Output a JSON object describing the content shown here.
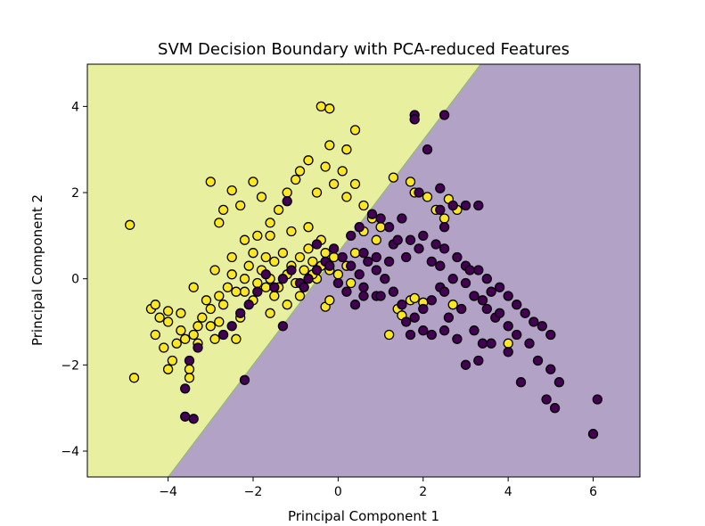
{
  "chart_data": {
    "type": "scatter",
    "title": "SVM Decision Boundary with PCA-reduced Features",
    "xlabel": "Principal Component 1",
    "ylabel": "Principal Component 2",
    "xlim": [
      -5.9,
      7.1
    ],
    "ylim": [
      -4.6,
      4.98
    ],
    "xticks": [
      -4,
      -2,
      0,
      2,
      4,
      6
    ],
    "yticks": [
      -4,
      -2,
      0,
      2,
      4
    ],
    "xtick_labels": [
      "−4",
      "−2",
      "0",
      "2",
      "4",
      "6"
    ],
    "ytick_labels": [
      "−4",
      "−2",
      "0",
      "2",
      "4"
    ],
    "grid": false,
    "legend": "none",
    "decision_boundary": {
      "line_points": [
        [
          -4.0,
          -4.6
        ],
        [
          3.35,
          4.98
        ]
      ],
      "region_colors": {
        "upper_left": "#e8f0a0",
        "lower_right": "#b2a3c6"
      }
    },
    "colors": {
      "class_1": "#fde725",
      "class_0": "#440154",
      "edge": "#000000"
    },
    "series": [
      {
        "class": 1,
        "points": [
          [
            -4.9,
            1.25
          ],
          [
            -4.8,
            -2.3
          ],
          [
            -4.4,
            -0.7
          ],
          [
            -4.3,
            -0.6
          ],
          [
            -4.2,
            -0.9
          ],
          [
            -4.1,
            -1.6
          ],
          [
            -4.0,
            -1.0
          ],
          [
            -4.3,
            -1.3
          ],
          [
            -4.0,
            -2.1
          ],
          [
            -3.9,
            -1.9
          ],
          [
            -3.8,
            -1.5
          ],
          [
            -3.7,
            -1.2
          ],
          [
            -3.5,
            -2.1
          ],
          [
            -3.5,
            -2.3
          ],
          [
            -3.4,
            -1.3
          ],
          [
            -3.3,
            -1.5
          ],
          [
            -3.2,
            -0.9
          ],
          [
            -3.1,
            -0.5
          ],
          [
            -3.0,
            -0.7
          ],
          [
            -3.0,
            -1.1
          ],
          [
            -2.9,
            -1.4
          ],
          [
            -2.8,
            -1.0
          ],
          [
            -2.7,
            -0.6
          ],
          [
            -2.6,
            -0.2
          ],
          [
            -2.5,
            0.1
          ],
          [
            -2.4,
            -1.4
          ],
          [
            -2.3,
            -0.9
          ],
          [
            -2.2,
            -0.3
          ],
          [
            -2.1,
            0.3
          ],
          [
            -2.0,
            0.6
          ],
          [
            -1.9,
            -0.1
          ],
          [
            -1.8,
            0.2
          ],
          [
            -1.7,
            0.5
          ],
          [
            -1.6,
            0.0
          ],
          [
            -1.5,
            0.4
          ],
          [
            -1.4,
            -0.2
          ],
          [
            -1.3,
            0.6
          ],
          [
            -1.2,
            0.1
          ],
          [
            -1.1,
            0.3
          ],
          [
            -1.0,
            -0.1
          ],
          [
            -0.9,
            0.5
          ],
          [
            -0.8,
            0.2
          ],
          [
            -0.7,
            0.7
          ],
          [
            -0.6,
            0.4
          ],
          [
            -0.5,
            0.0
          ],
          [
            -0.4,
            0.3
          ],
          [
            -0.3,
            0.6
          ],
          [
            -0.2,
            0.2
          ],
          [
            -0.1,
            0.5
          ],
          [
            0.0,
            0.1
          ],
          [
            0.2,
            0.3
          ],
          [
            0.4,
            0.6
          ],
          [
            0.6,
            1.1
          ],
          [
            0.8,
            1.4
          ],
          [
            -3.0,
            2.25
          ],
          [
            -2.8,
            1.3
          ],
          [
            -2.7,
            1.6
          ],
          [
            -2.5,
            2.05
          ],
          [
            -2.3,
            1.7
          ],
          [
            -2.0,
            2.25
          ],
          [
            -1.8,
            1.9
          ],
          [
            -1.6,
            1.3
          ],
          [
            -1.4,
            1.6
          ],
          [
            -1.2,
            2.0
          ],
          [
            -1.0,
            2.3
          ],
          [
            -0.9,
            2.5
          ],
          [
            -0.7,
            2.75
          ],
          [
            -0.5,
            2.0
          ],
          [
            -0.3,
            2.6
          ],
          [
            -0.2,
            3.1
          ],
          [
            -0.1,
            2.2
          ],
          [
            0.1,
            2.5
          ],
          [
            0.2,
            1.9
          ],
          [
            0.2,
            3.0
          ],
          [
            0.4,
            2.2
          ],
          [
            0.4,
            3.45
          ],
          [
            0.6,
            1.7
          ],
          [
            -0.4,
            4.0
          ],
          [
            -0.2,
            3.95
          ],
          [
            -3.4,
            -0.2
          ],
          [
            -2.9,
            0.2
          ],
          [
            -2.5,
            0.5
          ],
          [
            -2.2,
            0.9
          ],
          [
            -1.9,
            1.0
          ],
          [
            -1.6,
            1.0
          ],
          [
            -1.1,
            1.1
          ],
          [
            -0.7,
            1.2
          ],
          [
            -0.4,
            0.9
          ],
          [
            -0.9,
            -0.4
          ],
          [
            -1.2,
            -0.6
          ],
          [
            -1.6,
            -0.8
          ],
          [
            -2.0,
            -0.5
          ],
          [
            -2.4,
            -0.3
          ],
          [
            -2.8,
            -0.4
          ],
          [
            -3.3,
            -1.1
          ],
          [
            -3.6,
            -1.4
          ],
          [
            -0.3,
            -0.65
          ],
          [
            1.3,
            2.35
          ],
          [
            1.7,
            2.25
          ],
          [
            1.8,
            2.0
          ],
          [
            2.1,
            1.9
          ],
          [
            2.3,
            1.6
          ],
          [
            2.5,
            1.4
          ],
          [
            2.6,
            1.85
          ],
          [
            2.8,
            1.6
          ],
          [
            1.7,
            -0.5
          ],
          [
            1.8,
            -0.45
          ],
          [
            1.4,
            -0.7
          ],
          [
            1.2,
            -1.3
          ],
          [
            2.7,
            -0.6
          ],
          [
            3.2,
            -0.4
          ],
          [
            4.0,
            -1.5
          ],
          [
            1.5,
            -0.85
          ],
          [
            2.0,
            -0.55
          ],
          [
            -2.2,
            0.0
          ],
          [
            -1.5,
            -0.4
          ],
          [
            -0.6,
            0.1
          ],
          [
            0.3,
            -0.1
          ],
          [
            0.9,
            0.9
          ],
          [
            1.0,
            1.2
          ],
          [
            -1.7,
            -0.2
          ],
          [
            -0.2,
            -0.5
          ],
          [
            -3.7,
            -0.8
          ],
          [
            -4.0,
            -0.75
          ]
        ]
      },
      {
        "class": 0,
        "points": [
          [
            1.8,
            3.8
          ],
          [
            1.8,
            3.7
          ],
          [
            2.5,
            3.8
          ],
          [
            2.1,
            3.0
          ],
          [
            1.9,
            2.0
          ],
          [
            2.4,
            2.1
          ],
          [
            2.4,
            1.6
          ],
          [
            2.7,
            1.7
          ],
          [
            3.0,
            1.7
          ],
          [
            3.3,
            1.7
          ],
          [
            2.5,
            1.2
          ],
          [
            2.0,
            1.0
          ],
          [
            1.5,
            1.4
          ],
          [
            1.2,
            1.2
          ],
          [
            0.8,
            1.5
          ],
          [
            0.5,
            1.2
          ],
          [
            1.0,
            1.4
          ],
          [
            1.3,
            0.8
          ],
          [
            1.7,
            0.9
          ],
          [
            1.9,
            0.7
          ],
          [
            2.2,
            0.4
          ],
          [
            2.5,
            0.7
          ],
          [
            2.8,
            0.5
          ],
          [
            3.0,
            0.3
          ],
          [
            3.3,
            0.2
          ],
          [
            3.5,
            0.0
          ],
          [
            3.8,
            -0.2
          ],
          [
            4.0,
            -0.4
          ],
          [
            4.2,
            -0.6
          ],
          [
            4.4,
            -0.8
          ],
          [
            4.6,
            -1.0
          ],
          [
            4.8,
            -1.1
          ],
          [
            5.0,
            -1.3
          ],
          [
            4.7,
            -1.9
          ],
          [
            4.5,
            -1.5
          ],
          [
            4.2,
            -1.3
          ],
          [
            4.0,
            -1.1
          ],
          [
            3.7,
            -0.9
          ],
          [
            3.5,
            -0.7
          ],
          [
            3.2,
            -0.4
          ],
          [
            3.0,
            -0.1
          ],
          [
            2.7,
            0.0
          ],
          [
            2.4,
            -0.2
          ],
          [
            2.2,
            -0.5
          ],
          [
            2.0,
            -0.7
          ],
          [
            1.8,
            -0.9
          ],
          [
            1.6,
            -1.0
          ],
          [
            1.5,
            -0.6
          ],
          [
            1.3,
            -0.3
          ],
          [
            1.1,
            0.0
          ],
          [
            0.9,
            0.2
          ],
          [
            0.7,
            0.4
          ],
          [
            0.5,
            0.1
          ],
          [
            0.3,
            0.3
          ],
          [
            0.1,
            0.5
          ],
          [
            -0.1,
            0.7
          ],
          [
            -0.3,
            0.4
          ],
          [
            -0.5,
            0.2
          ],
          [
            -0.7,
            0.0
          ],
          [
            -0.9,
            -0.1
          ],
          [
            -1.1,
            0.2
          ],
          [
            -1.3,
            0.0
          ],
          [
            -1.5,
            -0.2
          ],
          [
            -1.7,
            0.1
          ],
          [
            -1.9,
            -0.3
          ],
          [
            -2.1,
            -0.6
          ],
          [
            -2.3,
            -0.8
          ],
          [
            -2.5,
            -1.1
          ],
          [
            -2.7,
            -1.3
          ],
          [
            -3.3,
            -1.6
          ],
          [
            -3.5,
            -1.9
          ],
          [
            -3.6,
            -2.55
          ],
          [
            -3.6,
            -3.2
          ],
          [
            -3.4,
            -3.25
          ],
          [
            -2.2,
            -2.35
          ],
          [
            -1.3,
            -1.1
          ],
          [
            -1.2,
            1.8
          ],
          [
            -0.5,
            0.8
          ],
          [
            0.3,
            1.0
          ],
          [
            0.6,
            0.6
          ],
          [
            0.0,
            -0.1
          ],
          [
            0.2,
            -0.3
          ],
          [
            0.6,
            -0.2
          ],
          [
            0.9,
            -0.4
          ],
          [
            1.7,
            -1.3
          ],
          [
            2.0,
            -1.2
          ],
          [
            2.2,
            -1.3
          ],
          [
            2.5,
            -1.2
          ],
          [
            2.8,
            -1.4
          ],
          [
            3.2,
            -1.2
          ],
          [
            3.4,
            -1.5
          ],
          [
            3.0,
            -2.0
          ],
          [
            3.3,
            -1.9
          ],
          [
            3.6,
            -1.5
          ],
          [
            4.3,
            -2.4
          ],
          [
            4.9,
            -2.8
          ],
          [
            5.0,
            -2.1
          ],
          [
            5.1,
            -3.0
          ],
          [
            5.2,
            -2.4
          ],
          [
            6.0,
            -3.6
          ],
          [
            6.1,
            -2.8
          ],
          [
            4.0,
            -1.7
          ],
          [
            3.8,
            -0.8
          ],
          [
            3.4,
            -0.5
          ],
          [
            2.9,
            -0.7
          ],
          [
            2.5,
            -0.3
          ],
          [
            3.1,
            0.2
          ],
          [
            2.6,
            -0.9
          ],
          [
            1.4,
            0.9
          ],
          [
            1.6,
            0.5
          ],
          [
            2.3,
            0.8
          ],
          [
            0.9,
            0.5
          ],
          [
            -0.2,
            0.3
          ],
          [
            -0.8,
            -0.2
          ],
          [
            0.4,
            -0.6
          ],
          [
            0.6,
            -0.4
          ],
          [
            1.0,
            -0.4
          ],
          [
            1.2,
            0.4
          ],
          [
            2.4,
            0.3
          ],
          [
            3.6,
            -0.3
          ]
        ]
      }
    ]
  }
}
